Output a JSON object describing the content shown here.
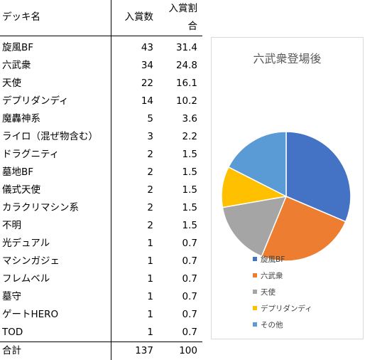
{
  "table": {
    "headers": {
      "name": "デッキ名",
      "count": "入賞数",
      "pct_line1": "入賞割",
      "pct_line2": "合"
    },
    "rows": [
      {
        "name": "旋風BF",
        "count": "43",
        "pct": "31.4"
      },
      {
        "name": "六武衆",
        "count": "34",
        "pct": "24.8"
      },
      {
        "name": "天使",
        "count": "22",
        "pct": "16.1"
      },
      {
        "name": "デプリダンディ",
        "count": "14",
        "pct": "10.2"
      },
      {
        "name": "魔轟神系",
        "count": "5",
        "pct": "3.6"
      },
      {
        "name": "ライロ（混ぜ物含む）",
        "count": "3",
        "pct": "2.2"
      },
      {
        "name": "ドラグニティ",
        "count": "2",
        "pct": "1.5"
      },
      {
        "name": "墓地BF",
        "count": "2",
        "pct": "1.5"
      },
      {
        "name": "儀式天使",
        "count": "2",
        "pct": "1.5"
      },
      {
        "name": "カラクリマシン系",
        "count": "2",
        "pct": "1.5"
      },
      {
        "name": "不明",
        "count": "2",
        "pct": "1.5"
      },
      {
        "name": "光デュアル",
        "count": "1",
        "pct": "0.7"
      },
      {
        "name": "マシンガジェ",
        "count": "1",
        "pct": "0.7"
      },
      {
        "name": "フレムベル",
        "count": "1",
        "pct": "0.7"
      },
      {
        "name": "墓守",
        "count": "1",
        "pct": "0.7"
      },
      {
        "name": "ゲートHERO",
        "count": "1",
        "pct": "0.7"
      },
      {
        "name": "TOD",
        "count": "1",
        "pct": "0.7"
      }
    ],
    "total": {
      "name": "合計",
      "count": "137",
      "pct": "100"
    }
  },
  "chart_data": {
    "type": "pie",
    "title": "六武衆登場後",
    "categories": [
      "旋風BF",
      "六武衆",
      "天使",
      "デプリダンディ",
      "その他"
    ],
    "values": [
      43,
      34,
      22,
      14,
      24
    ],
    "colors": [
      "#4472c4",
      "#ed7d31",
      "#a5a5a5",
      "#ffc000",
      "#5b9bd5"
    ],
    "legend_position": "bottom"
  }
}
